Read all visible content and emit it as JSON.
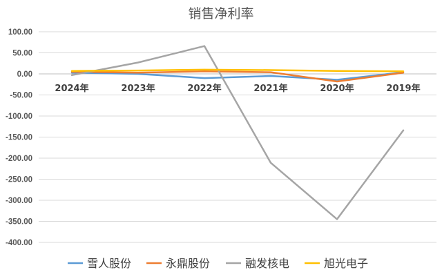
{
  "chart_data": {
    "type": "line",
    "title": "销售净利率",
    "categories": [
      "2024年",
      "2023年",
      "2022年",
      "2021年",
      "2020年",
      "2019年"
    ],
    "ylim": [
      -400,
      100
    ],
    "yticks": [
      100,
      50,
      0,
      -50,
      -100,
      -150,
      -200,
      -250,
      -300,
      -350,
      -400
    ],
    "ytick_labels": [
      "100.00",
      "50.00",
      "0.00",
      "-50.00",
      "-100.00",
      "-150.00",
      "-200.00",
      "-250.00",
      "-300.00",
      "-350.00",
      "-400.00"
    ],
    "grid": true,
    "legend_position": "bottom",
    "series": [
      {
        "name": "雪人股份",
        "color": "#5b9bd5",
        "values": [
          3,
          0,
          -10,
          -5,
          -14,
          4
        ]
      },
      {
        "name": "永鼎股份",
        "color": "#ed7d31",
        "values": [
          5,
          3,
          6,
          4,
          -18,
          3
        ]
      },
      {
        "name": "融发核电",
        "color": "#a5a5a5",
        "values": [
          -3,
          27,
          66,
          -211,
          -345,
          -134
        ]
      },
      {
        "name": "旭光电子",
        "color": "#ffc000",
        "values": [
          7,
          8,
          10,
          9,
          7,
          6
        ]
      }
    ]
  }
}
